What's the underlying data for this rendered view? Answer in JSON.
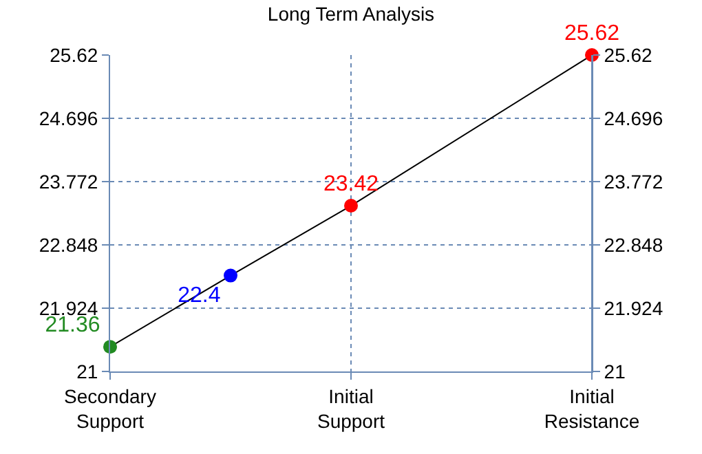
{
  "chart_data": {
    "type": "line",
    "title": "Long Term Analysis",
    "categories": [
      "Secondary\nSupport",
      null,
      "Initial\nSupport",
      null,
      "Initial\nResistance"
    ],
    "series": [
      {
        "color": "#000000",
        "colors": [
          "#228b22",
          "#0000ff",
          "#ff0000",
          "#ff0000",
          "#ff0000"
        ],
        "values": [
          21.36,
          22.4,
          23.42,
          null,
          25.62
        ]
      }
    ],
    "data_labels": true,
    "marker": "circle",
    "grid": true,
    "ylim": [
      21,
      25.62
    ],
    "yticks": [
      21,
      21.924,
      22.848,
      23.772,
      24.696,
      25.62
    ],
    "y2lim": [
      21,
      25.62
    ],
    "y2ticks": [
      21,
      21.924,
      22.848,
      23.772,
      24.696,
      25.62
    ]
  }
}
